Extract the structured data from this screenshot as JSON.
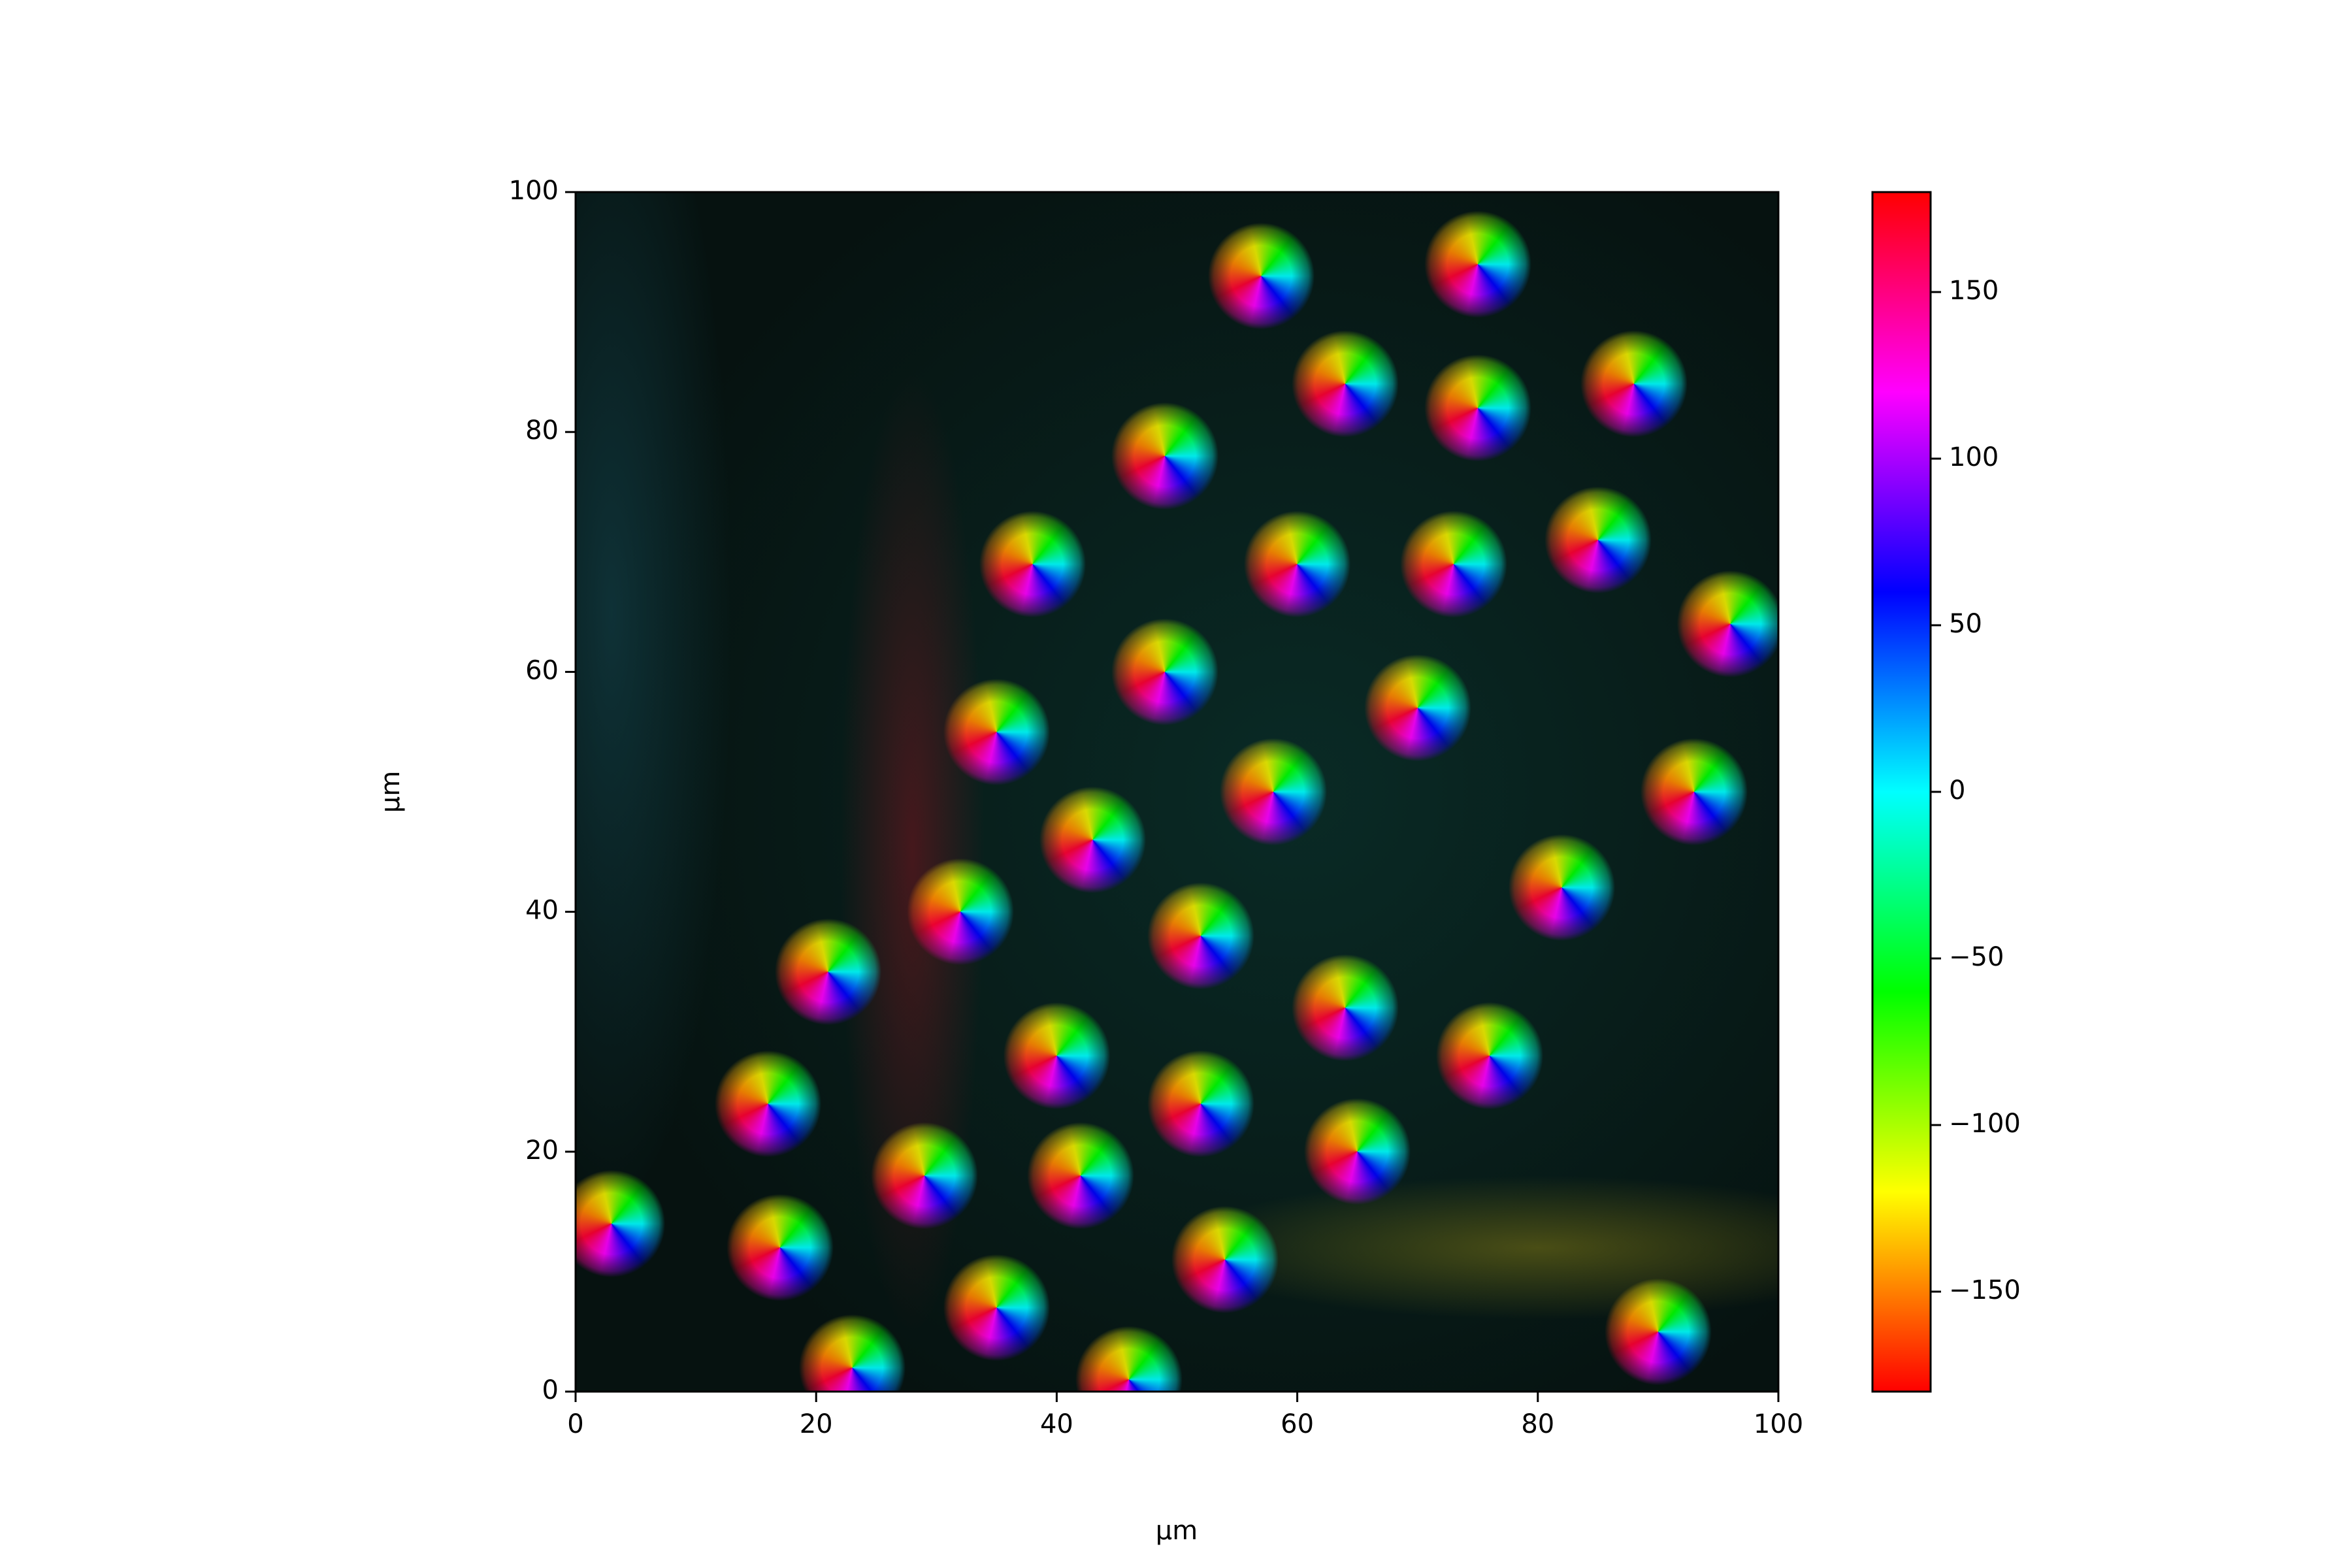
{
  "chart_data": {
    "type": "image",
    "xlabel": "µm",
    "ylabel": "µm",
    "xlim": [
      0,
      100
    ],
    "ylim": [
      0,
      100
    ],
    "xticks": [
      0,
      20,
      40,
      60,
      80,
      100
    ],
    "yticks": [
      0,
      20,
      40,
      60,
      80,
      100
    ],
    "colorbar": {
      "colormap": "hsv",
      "lim": [
        -180,
        180
      ],
      "ticks": [
        150,
        100,
        50,
        0,
        {
          "value": -50,
          "label": "−50"
        },
        {
          "value": -100,
          "label": "−100"
        },
        {
          "value": -150,
          "label": "−150"
        }
      ]
    }
  }
}
